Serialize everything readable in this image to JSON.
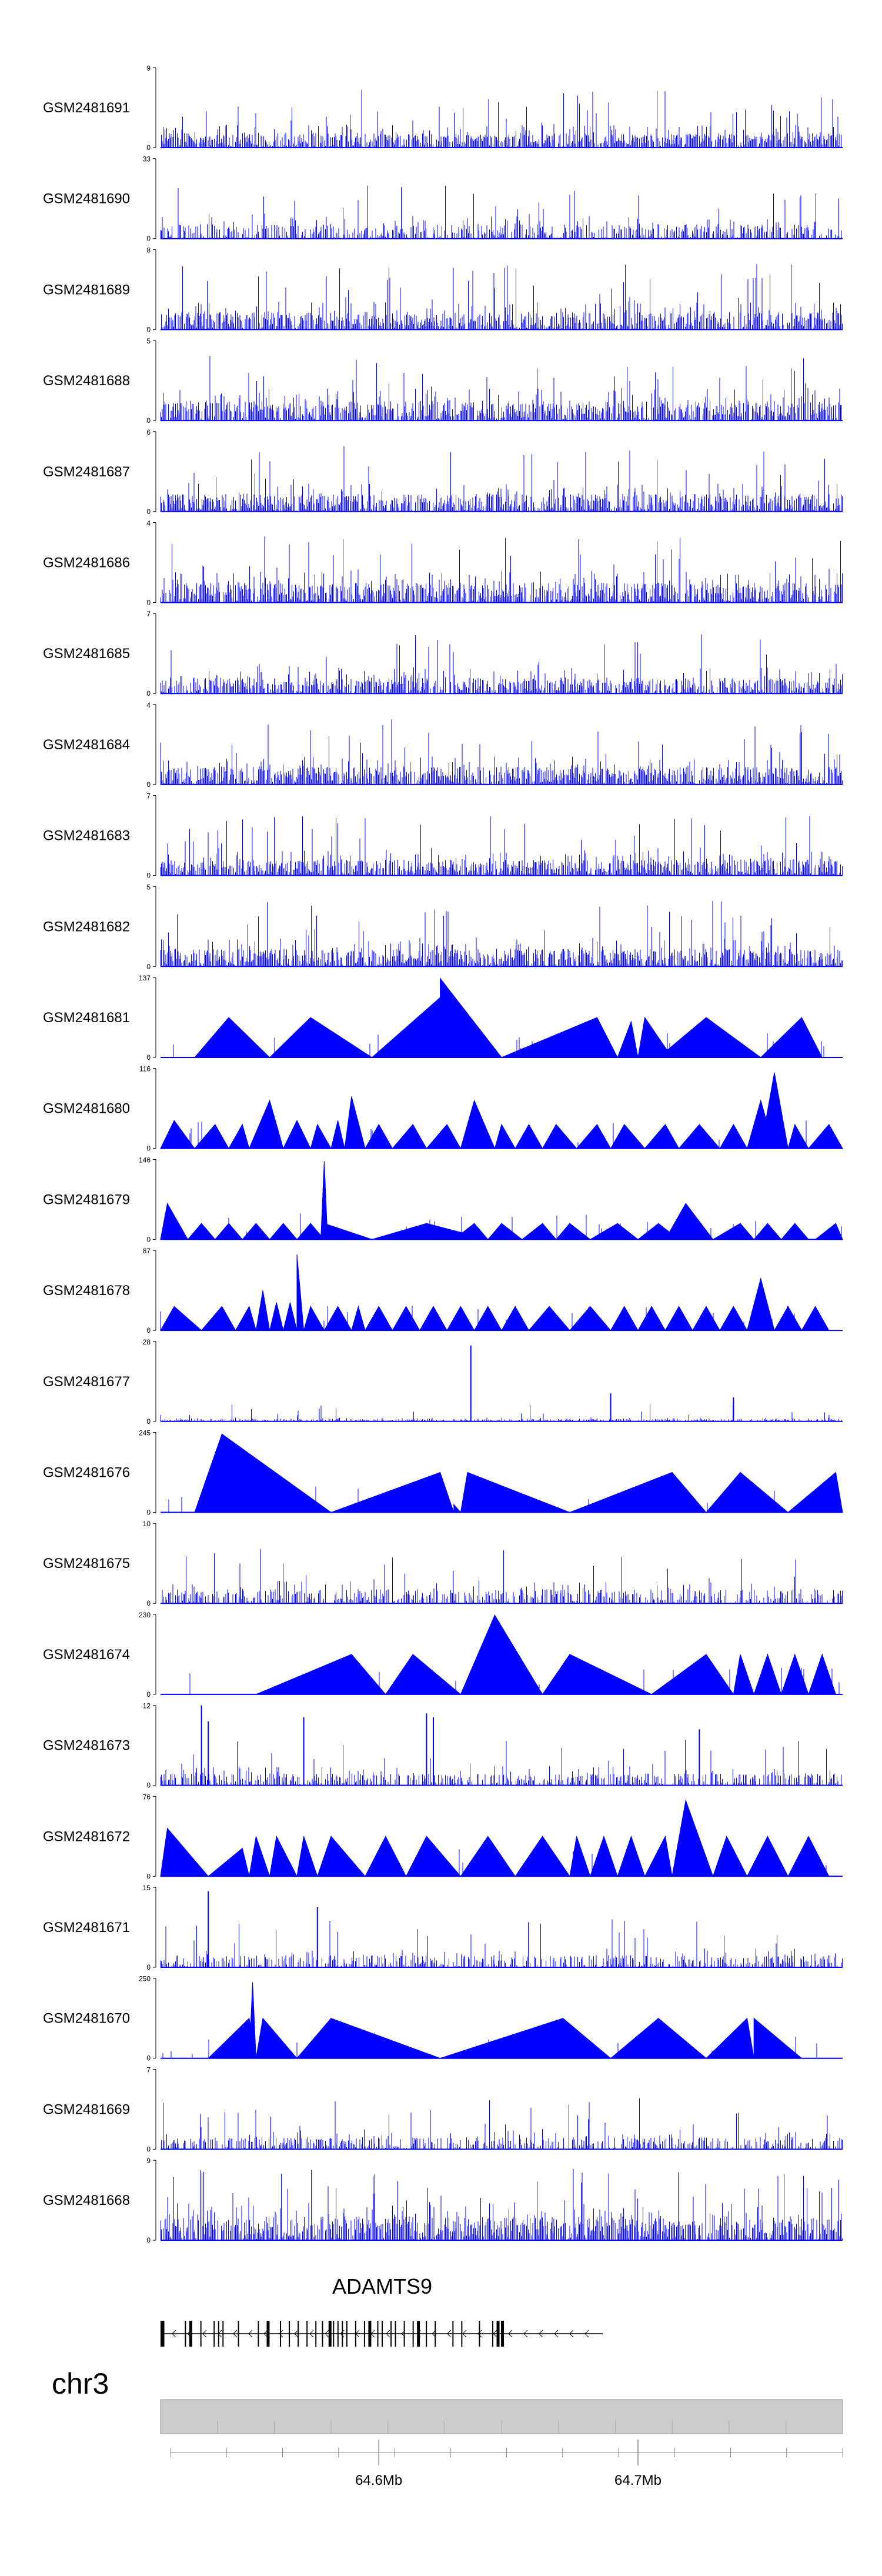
{
  "chart_data": {
    "type": "genome-browser-signal-tracks",
    "series_color": "#0000ff",
    "tracks": [
      {
        "name": "GSM2481691",
        "ymax": 9,
        "ymin": 0,
        "style": "dense",
        "seed": 11,
        "base": 0.18,
        "spike": 0.55
      },
      {
        "name": "GSM2481690",
        "ymax": 33,
        "ymin": 0,
        "style": "mixed",
        "seed": 12,
        "base": 0.18,
        "spike": 0.5
      },
      {
        "name": "GSM2481689",
        "ymax": 8,
        "ymin": 0,
        "style": "dense",
        "seed": 13,
        "base": 0.22,
        "spike": 0.6
      },
      {
        "name": "GSM2481688",
        "ymax": 5,
        "ymin": 0,
        "style": "dense",
        "seed": 14,
        "base": 0.25,
        "spike": 0.6
      },
      {
        "name": "GSM2481687",
        "ymax": 6,
        "ymin": 0,
        "style": "dense",
        "seed": 15,
        "base": 0.22,
        "spike": 0.6
      },
      {
        "name": "GSM2481686",
        "ymax": 4,
        "ymin": 0,
        "style": "dense",
        "seed": 16,
        "base": 0.25,
        "spike": 0.6
      },
      {
        "name": "GSM2481685",
        "ymax": 7,
        "ymin": 0,
        "style": "dense",
        "seed": 17,
        "base": 0.2,
        "spike": 0.55
      },
      {
        "name": "GSM2481684",
        "ymax": 4,
        "ymin": 0,
        "style": "dense",
        "seed": 18,
        "base": 0.22,
        "spike": 0.6
      },
      {
        "name": "GSM2481683",
        "ymax": 7,
        "ymin": 0,
        "style": "dense",
        "seed": 19,
        "base": 0.2,
        "spike": 0.55
      },
      {
        "name": "GSM2481682",
        "ymax": 5,
        "ymin": 0,
        "style": "dense",
        "seed": 20,
        "base": 0.22,
        "spike": 0.6
      },
      {
        "name": "GSM2481681",
        "ymax": 137,
        "ymin": 0,
        "style": "peaks",
        "seed": 21,
        "peaks": [
          [
            0.05,
            0.16,
            0.1,
            0.5
          ],
          [
            0.16,
            0.31,
            0.22,
            0.5
          ],
          [
            0.31,
            0.5,
            0.41,
            0.75
          ],
          [
            0.41,
            0.5,
            0.41,
            0.99
          ],
          [
            0.5,
            0.67,
            0.64,
            0.5
          ],
          [
            0.67,
            0.7,
            0.69,
            0.45
          ],
          [
            0.7,
            0.75,
            0.71,
            0.5
          ],
          [
            0.73,
            0.88,
            0.8,
            0.5
          ],
          [
            0.88,
            0.97,
            0.94,
            0.5
          ]
        ]
      },
      {
        "name": "GSM2481680",
        "ymax": 116,
        "ymin": 0,
        "style": "peaks",
        "seed": 22,
        "peaks": [
          [
            0.0,
            0.05,
            0.02,
            0.35
          ],
          [
            0.05,
            0.1,
            0.08,
            0.3
          ],
          [
            0.1,
            0.13,
            0.12,
            0.3
          ],
          [
            0.13,
            0.18,
            0.16,
            0.6
          ],
          [
            0.18,
            0.22,
            0.2,
            0.35
          ],
          [
            0.22,
            0.25,
            0.23,
            0.3
          ],
          [
            0.25,
            0.27,
            0.26,
            0.35
          ],
          [
            0.27,
            0.3,
            0.28,
            0.65
          ],
          [
            0.3,
            0.34,
            0.32,
            0.3
          ],
          [
            0.34,
            0.39,
            0.37,
            0.3
          ],
          [
            0.39,
            0.44,
            0.42,
            0.3
          ],
          [
            0.44,
            0.49,
            0.46,
            0.6
          ],
          [
            0.49,
            0.52,
            0.5,
            0.3
          ],
          [
            0.52,
            0.56,
            0.54,
            0.3
          ],
          [
            0.56,
            0.61,
            0.58,
            0.3
          ],
          [
            0.61,
            0.66,
            0.64,
            0.3
          ],
          [
            0.66,
            0.71,
            0.68,
            0.3
          ],
          [
            0.71,
            0.76,
            0.74,
            0.3
          ],
          [
            0.76,
            0.82,
            0.79,
            0.3
          ],
          [
            0.82,
            0.86,
            0.84,
            0.3
          ],
          [
            0.86,
            0.9,
            0.88,
            0.6
          ],
          [
            0.88,
            0.92,
            0.9,
            0.95
          ],
          [
            0.92,
            0.95,
            0.93,
            0.3
          ],
          [
            0.95,
            1.0,
            0.98,
            0.3
          ]
        ]
      },
      {
        "name": "GSM2481679",
        "ymax": 146,
        "ymin": 0,
        "style": "peaks",
        "seed": 23,
        "peaks": [
          [
            0.0,
            0.04,
            0.01,
            0.45
          ],
          [
            0.04,
            0.08,
            0.06,
            0.2
          ],
          [
            0.08,
            0.12,
            0.1,
            0.2
          ],
          [
            0.12,
            0.16,
            0.14,
            0.2
          ],
          [
            0.16,
            0.2,
            0.18,
            0.2
          ],
          [
            0.2,
            0.24,
            0.22,
            0.2
          ],
          [
            0.24,
            0.31,
            0.24,
            0.2
          ],
          [
            0.235,
            0.245,
            0.24,
            0.98
          ],
          [
            0.31,
            0.39,
            0.39,
            0.2
          ],
          [
            0.39,
            0.48,
            0.39,
            0.2
          ],
          [
            0.43,
            0.48,
            0.46,
            0.2
          ],
          [
            0.48,
            0.53,
            0.5,
            0.2
          ],
          [
            0.53,
            0.58,
            0.56,
            0.2
          ],
          [
            0.58,
            0.63,
            0.6,
            0.2
          ],
          [
            0.63,
            0.7,
            0.67,
            0.2
          ],
          [
            0.7,
            0.76,
            0.73,
            0.2
          ],
          [
            0.74,
            0.81,
            0.77,
            0.45
          ],
          [
            0.81,
            0.87,
            0.85,
            0.2
          ],
          [
            0.87,
            0.91,
            0.89,
            0.2
          ],
          [
            0.91,
            0.95,
            0.93,
            0.2
          ],
          [
            0.96,
            1.0,
            0.99,
            0.2
          ]
        ]
      },
      {
        "name": "GSM2481678",
        "ymax": 87,
        "ymin": 0,
        "style": "peaks",
        "seed": 24,
        "peaks": [
          [
            0.0,
            0.06,
            0.02,
            0.3
          ],
          [
            0.06,
            0.11,
            0.09,
            0.3
          ],
          [
            0.11,
            0.14,
            0.13,
            0.3
          ],
          [
            0.14,
            0.16,
            0.15,
            0.5
          ],
          [
            0.16,
            0.18,
            0.17,
            0.35
          ],
          [
            0.18,
            0.2,
            0.19,
            0.35
          ],
          [
            0.2,
            0.21,
            0.2,
            0.95
          ],
          [
            0.21,
            0.24,
            0.22,
            0.3
          ],
          [
            0.24,
            0.28,
            0.26,
            0.3
          ],
          [
            0.28,
            0.3,
            0.29,
            0.3
          ],
          [
            0.3,
            0.34,
            0.32,
            0.3
          ],
          [
            0.34,
            0.38,
            0.36,
            0.3
          ],
          [
            0.38,
            0.42,
            0.4,
            0.3
          ],
          [
            0.42,
            0.46,
            0.44,
            0.3
          ],
          [
            0.46,
            0.5,
            0.48,
            0.3
          ],
          [
            0.5,
            0.54,
            0.52,
            0.3
          ],
          [
            0.54,
            0.6,
            0.57,
            0.3
          ],
          [
            0.6,
            0.66,
            0.63,
            0.3
          ],
          [
            0.66,
            0.7,
            0.68,
            0.3
          ],
          [
            0.7,
            0.74,
            0.72,
            0.3
          ],
          [
            0.74,
            0.78,
            0.76,
            0.3
          ],
          [
            0.78,
            0.82,
            0.8,
            0.3
          ],
          [
            0.82,
            0.86,
            0.84,
            0.3
          ],
          [
            0.86,
            0.9,
            0.88,
            0.65
          ],
          [
            0.9,
            0.94,
            0.92,
            0.3
          ],
          [
            0.94,
            0.98,
            0.96,
            0.3
          ]
        ]
      },
      {
        "name": "GSM2481677",
        "ymax": 28,
        "ymin": 0,
        "style": "sparse",
        "seed": 25,
        "base": 0.03,
        "spike": 0.18,
        "bigspikes": [
          [
            0.455,
            0.95
          ],
          [
            0.66,
            0.35
          ],
          [
            0.84,
            0.3
          ]
        ]
      },
      {
        "name": "GSM2481676",
        "ymax": 245,
        "ymin": 0,
        "style": "peaks",
        "seed": 26,
        "peaks": [
          [
            0.05,
            0.25,
            0.09,
            0.98
          ],
          [
            0.25,
            0.43,
            0.41,
            0.5
          ],
          [
            0.43,
            0.44,
            0.43,
            0.1
          ],
          [
            0.44,
            0.6,
            0.45,
            0.5
          ],
          [
            0.6,
            0.8,
            0.75,
            0.5
          ],
          [
            0.8,
            0.92,
            0.85,
            0.5
          ],
          [
            0.92,
            1.0,
            0.99,
            0.5
          ]
        ]
      },
      {
        "name": "GSM2481675",
        "ymax": 10,
        "ymin": 0,
        "style": "sparse",
        "seed": 27,
        "base": 0.18,
        "spike": 0.5
      },
      {
        "name": "GSM2481674",
        "ymax": 230,
        "ymin": 0,
        "style": "peaks",
        "seed": 28,
        "peaks": [
          [
            0.14,
            0.33,
            0.28,
            0.5
          ],
          [
            0.33,
            0.44,
            0.37,
            0.5
          ],
          [
            0.44,
            0.56,
            0.49,
            0.99
          ],
          [
            0.49,
            0.56,
            0.49,
            0.5
          ],
          [
            0.56,
            0.72,
            0.6,
            0.5
          ],
          [
            0.72,
            0.84,
            0.8,
            0.5
          ],
          [
            0.84,
            0.87,
            0.85,
            0.5
          ],
          [
            0.87,
            0.91,
            0.89,
            0.5
          ],
          [
            0.91,
            0.95,
            0.93,
            0.5
          ],
          [
            0.95,
            0.99,
            0.97,
            0.5
          ]
        ]
      },
      {
        "name": "GSM2481673",
        "ymax": 12,
        "ymin": 0,
        "style": "sparse",
        "seed": 29,
        "base": 0.15,
        "spike": 0.45,
        "bigspikes": [
          [
            0.06,
            1.0
          ],
          [
            0.07,
            0.8
          ],
          [
            0.21,
            0.85
          ],
          [
            0.39,
            0.9
          ],
          [
            0.4,
            0.85
          ],
          [
            0.79,
            0.7
          ]
        ]
      },
      {
        "name": "GSM2481672",
        "ymax": 76,
        "ymin": 0,
        "style": "peaks",
        "seed": 30,
        "peaks": [
          [
            0.0,
            0.07,
            0.01,
            0.6
          ],
          [
            0.07,
            0.13,
            0.12,
            0.35
          ],
          [
            0.13,
            0.16,
            0.14,
            0.5
          ],
          [
            0.16,
            0.2,
            0.17,
            0.5
          ],
          [
            0.2,
            0.23,
            0.21,
            0.5
          ],
          [
            0.23,
            0.3,
            0.25,
            0.5
          ],
          [
            0.3,
            0.36,
            0.33,
            0.5
          ],
          [
            0.36,
            0.44,
            0.39,
            0.5
          ],
          [
            0.44,
            0.52,
            0.48,
            0.5
          ],
          [
            0.52,
            0.6,
            0.56,
            0.5
          ],
          [
            0.6,
            0.63,
            0.61,
            0.5
          ],
          [
            0.63,
            0.67,
            0.65,
            0.5
          ],
          [
            0.67,
            0.71,
            0.69,
            0.5
          ],
          [
            0.71,
            0.75,
            0.74,
            0.5
          ],
          [
            0.75,
            0.81,
            0.77,
            0.95
          ],
          [
            0.81,
            0.86,
            0.83,
            0.5
          ],
          [
            0.86,
            0.92,
            0.89,
            0.5
          ],
          [
            0.92,
            0.98,
            0.95,
            0.5
          ]
        ]
      },
      {
        "name": "GSM2481671",
        "ymax": 15,
        "ymin": 0,
        "style": "sparse",
        "seed": 31,
        "base": 0.15,
        "spike": 0.45,
        "bigspikes": [
          [
            0.07,
            0.95
          ],
          [
            0.23,
            0.75
          ]
        ]
      },
      {
        "name": "GSM2481670",
        "ymax": 250,
        "ymin": 0,
        "style": "peaks",
        "seed": 32,
        "peaks": [
          [
            0.07,
            0.14,
            0.13,
            0.5
          ],
          [
            0.13,
            0.14,
            0.135,
            0.95
          ],
          [
            0.14,
            0.2,
            0.15,
            0.5
          ],
          [
            0.2,
            0.41,
            0.25,
            0.5
          ],
          [
            0.41,
            0.66,
            0.59,
            0.5
          ],
          [
            0.66,
            0.8,
            0.73,
            0.5
          ],
          [
            0.8,
            0.87,
            0.86,
            0.5
          ],
          [
            0.87,
            0.94,
            0.87,
            0.5
          ]
        ]
      },
      {
        "name": "GSM2481669",
        "ymax": 7,
        "ymin": 0,
        "style": "sparse",
        "seed": 33,
        "base": 0.15,
        "spike": 0.5
      },
      {
        "name": "GSM2481668",
        "ymax": 9,
        "ymin": 0,
        "style": "dense",
        "seed": 34,
        "base": 0.3,
        "spike": 0.6
      }
    ],
    "gene": {
      "name": "ADAMTS9",
      "strand": "-",
      "exons": [
        0.0,
        0.006,
        0.055,
        0.065,
        0.09,
        0.12,
        0.13,
        0.14,
        0.175,
        0.22,
        0.24,
        0.27,
        0.29,
        0.31,
        0.33,
        0.35,
        0.365,
        0.38,
        0.39,
        0.4,
        0.41,
        0.42,
        0.44,
        0.46,
        0.47,
        0.49,
        0.5,
        0.52,
        0.53,
        0.55,
        0.57,
        0.58,
        0.6,
        0.62,
        0.66,
        0.68,
        0.72,
        0.75,
        0.76,
        0.77
      ]
    },
    "chromosome": {
      "name": "chr3",
      "ticks": [
        {
          "pos": 0.32,
          "label": "64.6Mb"
        },
        {
          "pos": 0.7,
          "label": "64.7Mb"
        }
      ]
    }
  }
}
